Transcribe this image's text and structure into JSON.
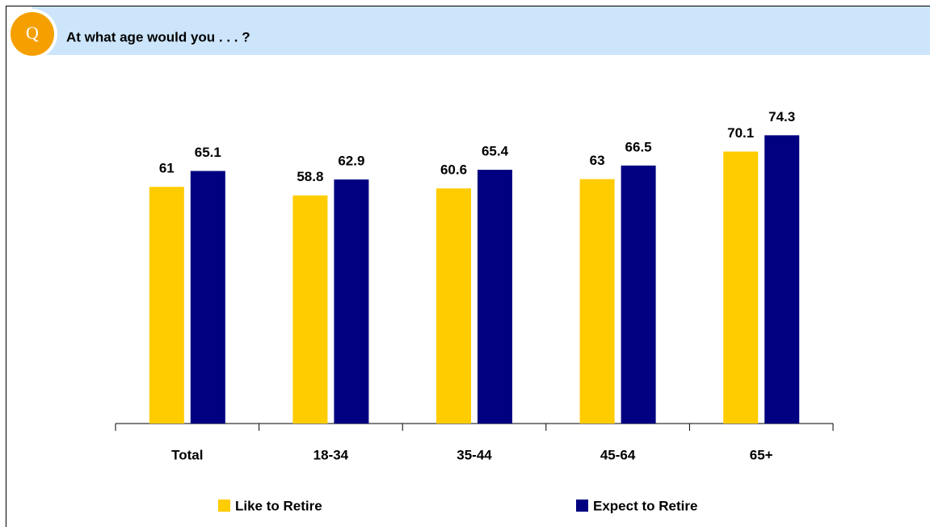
{
  "chart_data": {
    "type": "bar",
    "title": "At what age would you . . . ?",
    "badge": "Q",
    "categories": [
      "Total",
      "18-34",
      "35-44",
      "45-64",
      "65+"
    ],
    "series": [
      {
        "name": "Like to Retire",
        "color": "#ffcc00",
        "values": [
          61,
          58.8,
          60.6,
          63,
          70.1
        ]
      },
      {
        "name": "Expect to Retire",
        "color": "#000080",
        "values": [
          65.1,
          62.9,
          65.4,
          66.5,
          74.3
        ]
      }
    ],
    "ylim": [
      0,
      90
    ],
    "legend": "bottom"
  }
}
